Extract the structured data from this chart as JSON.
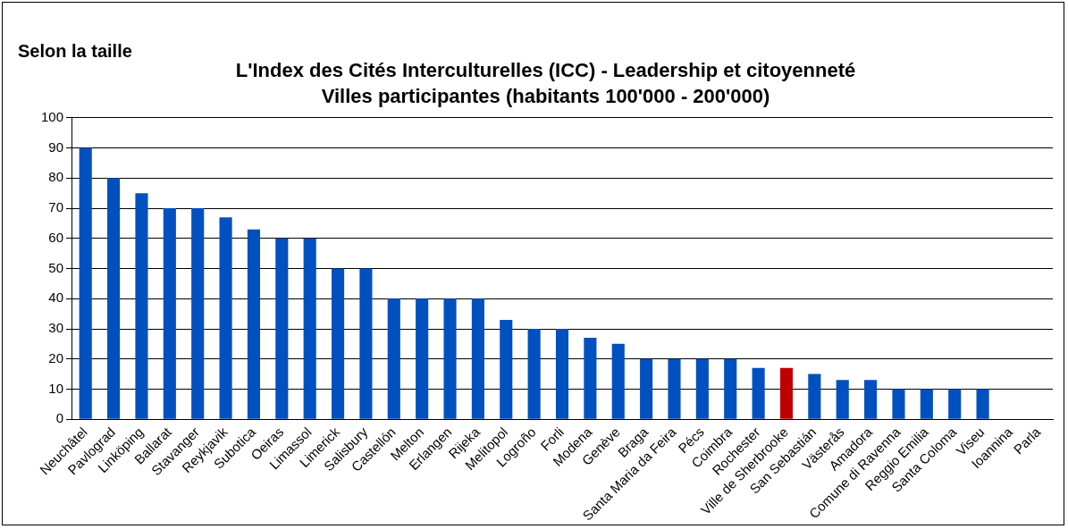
{
  "chart_data": {
    "type": "bar",
    "title": "L'Index des Cités Interculturelles (ICC) - Leadership et citoyenneté",
    "subtitle": "Villes participantes (habitants 100'000 - 200'000)",
    "annotations": [
      "Selon la taille"
    ],
    "categories": [
      "Neuchâtel",
      "Pavlograd",
      "Linköping",
      "Ballarat",
      "Stavanger",
      "Reykjavik",
      "Subotica",
      "Oeiras",
      "Limassol",
      "Limerick",
      "Salisbury",
      "Castellón",
      "Melton",
      "Erlangen",
      "Rijeka",
      "Melitopol",
      "Logroño",
      "Forli",
      "Modena",
      "Genève",
      "Braga",
      "Santa Maria da Feira",
      "Pécs",
      "Coimbra",
      "Rochester",
      "Ville de Sherbrooke",
      "San Sebastián",
      "Västerås",
      "Amadora",
      "Comune di Ravenna",
      "Reggio Emilia",
      "Santa Coloma",
      "Viseu",
      "Ioannina",
      "Parla"
    ],
    "values": [
      90,
      80,
      75,
      70,
      70,
      67,
      63,
      60,
      60,
      50,
      50,
      40,
      40,
      40,
      40,
      33,
      30,
      30,
      27,
      25,
      20,
      20,
      20,
      20,
      17,
      17,
      15,
      13,
      13,
      10,
      10,
      10,
      10,
      0,
      0
    ],
    "colors": [
      "#0050c0",
      "#0050c0",
      "#0050c0",
      "#0050c0",
      "#0050c0",
      "#0050c0",
      "#0050c0",
      "#0050c0",
      "#0050c0",
      "#0050c0",
      "#0050c0",
      "#0050c0",
      "#0050c0",
      "#0050c0",
      "#0050c0",
      "#0050c0",
      "#0050c0",
      "#0050c0",
      "#0050c0",
      "#0050c0",
      "#0050c0",
      "#0050c0",
      "#0050c0",
      "#0050c0",
      "#0050c0",
      "#c00000",
      "#0050c0",
      "#0050c0",
      "#0050c0",
      "#0050c0",
      "#0050c0",
      "#0050c0",
      "#0050c0",
      "#0050c0",
      "#0050c0"
    ],
    "ylim": [
      0,
      100
    ],
    "yticks": [
      0,
      10,
      20,
      30,
      40,
      50,
      60,
      70,
      80,
      90,
      100
    ],
    "grid": "y",
    "legend": false
  }
}
